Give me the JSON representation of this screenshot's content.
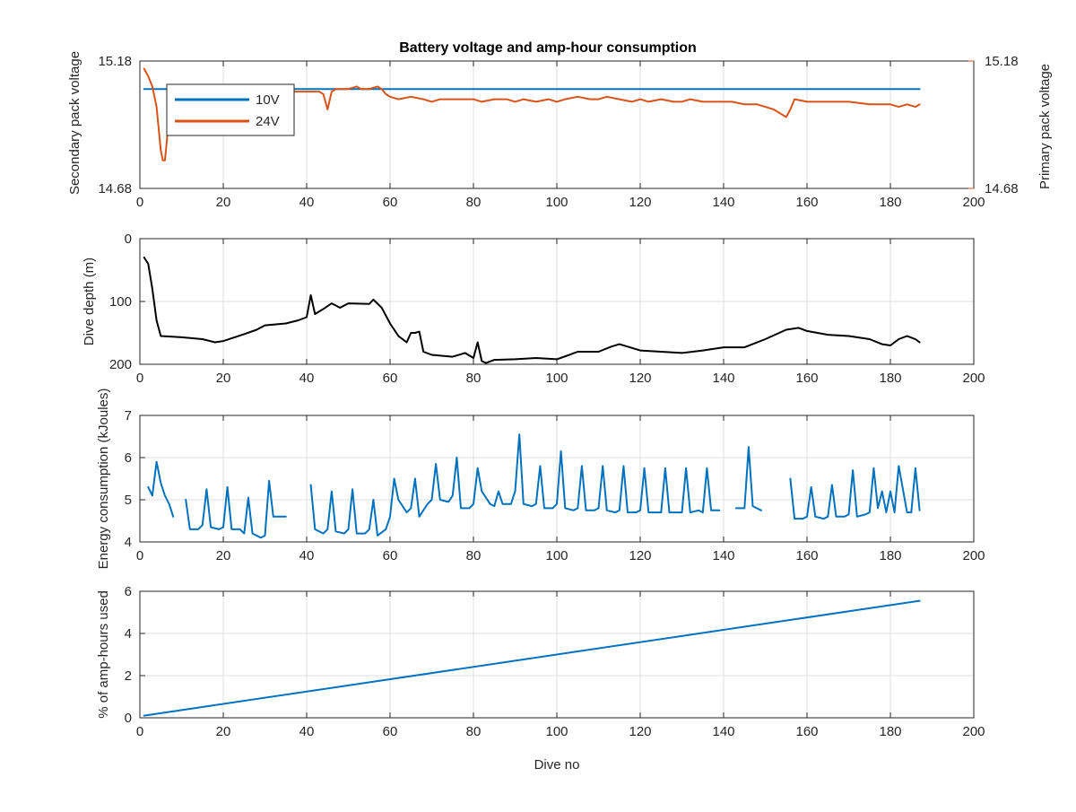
{
  "colors": {
    "series_blue": "#0072BD",
    "series_orange": "#D95319",
    "series_black": "#000000",
    "axis_text": "#262626",
    "grid": "#dfdfdf"
  },
  "chart_data": [
    {
      "type": "line",
      "title": "Battery voltage and amp-hour consumption",
      "xlabel": "",
      "ylabel_left": "Secondary pack voltage",
      "ylabel_right": "Primary pack voltage",
      "xlim": [
        0,
        200
      ],
      "ylim_left": [
        14.68,
        15.18
      ],
      "ylim_right": [
        14.68,
        15.18
      ],
      "x_ticks": [
        "0",
        "20",
        "40",
        "60",
        "80",
        "100",
        "120",
        "140",
        "160",
        "180",
        "200"
      ],
      "y_ticks_left": [
        "14.68",
        "15.18"
      ],
      "y_ticks_right": [
        "14.68",
        "15.18"
      ],
      "grid": true,
      "legend": {
        "placement": "top-left",
        "entries": [
          "10V",
          "24V"
        ]
      },
      "series": [
        {
          "name": "10V",
          "axis": "left",
          "color": "#0072BD",
          "x": [
            1,
            187
          ],
          "y": [
            15.07,
            15.07
          ]
        },
        {
          "name": "24V",
          "axis": "right",
          "color": "#D95319",
          "x": [
            1,
            2,
            3,
            4,
            5,
            5.5,
            6,
            6.5,
            7,
            8,
            10,
            15,
            20,
            25,
            30,
            35,
            40,
            43,
            44,
            45,
            46,
            47,
            50,
            52,
            53,
            55,
            57,
            58,
            59,
            60,
            62,
            65,
            68,
            70,
            72,
            75,
            78,
            80,
            82,
            85,
            88,
            90,
            92,
            95,
            98,
            100,
            102,
            105,
            108,
            110,
            112,
            115,
            118,
            120,
            122,
            125,
            128,
            130,
            132,
            135,
            138,
            140,
            142,
            145,
            148,
            150,
            152,
            154,
            155,
            156,
            157,
            160,
            165,
            170,
            175,
            180,
            182,
            184,
            186,
            187
          ],
          "y": [
            15.15,
            15.12,
            15.08,
            15.0,
            14.83,
            14.79,
            14.79,
            14.87,
            15.03,
            15.06,
            15.07,
            15.07,
            15.07,
            15.06,
            15.05,
            15.06,
            15.06,
            15.06,
            15.05,
            14.99,
            15.06,
            15.07,
            15.07,
            15.08,
            15.07,
            15.07,
            15.08,
            15.07,
            15.05,
            15.04,
            15.03,
            15.04,
            15.03,
            15.02,
            15.03,
            15.03,
            15.03,
            15.03,
            15.02,
            15.03,
            15.03,
            15.02,
            15.03,
            15.02,
            15.03,
            15.02,
            15.03,
            15.04,
            15.03,
            15.03,
            15.04,
            15.03,
            15.02,
            15.03,
            15.02,
            15.03,
            15.02,
            15.02,
            15.03,
            15.02,
            15.02,
            15.02,
            15.02,
            15.01,
            15.01,
            15.0,
            14.99,
            14.97,
            14.96,
            14.99,
            15.03,
            15.02,
            15.02,
            15.02,
            15.01,
            15.01,
            15.0,
            15.01,
            15.0,
            15.01
          ]
        }
      ]
    },
    {
      "type": "line",
      "title": "",
      "xlabel": "",
      "ylabel": "Dive depth (m)",
      "xlim": [
        0,
        200
      ],
      "ylim": [
        200,
        0
      ],
      "y_reversed": true,
      "x_ticks": [
        "0",
        "20",
        "40",
        "60",
        "80",
        "100",
        "120",
        "140",
        "160",
        "180",
        "200"
      ],
      "y_ticks": [
        "0",
        "100",
        "200"
      ],
      "grid": true,
      "series": [
        {
          "color": "#000000",
          "x": [
            1,
            2,
            3,
            4,
            5,
            10,
            15,
            18,
            20,
            25,
            28,
            30,
            35,
            38,
            40,
            41,
            42,
            44,
            46,
            48,
            50,
            55,
            56,
            58,
            60,
            62,
            64,
            65,
            66,
            67,
            68,
            70,
            75,
            78,
            80,
            81,
            82,
            83,
            85,
            90,
            95,
            100,
            103,
            105,
            110,
            113,
            115,
            120,
            125,
            130,
            135,
            140,
            145,
            150,
            155,
            158,
            160,
            165,
            170,
            175,
            178,
            180,
            182,
            184,
            186,
            187
          ],
          "y": [
            30,
            40,
            80,
            130,
            155,
            157,
            160,
            165,
            163,
            152,
            145,
            138,
            135,
            130,
            125,
            90,
            120,
            112,
            103,
            110,
            103,
            104,
            97,
            110,
            135,
            155,
            165,
            150,
            150,
            148,
            180,
            185,
            188,
            182,
            190,
            165,
            195,
            198,
            193,
            192,
            190,
            192,
            185,
            180,
            180,
            172,
            168,
            178,
            180,
            182,
            178,
            173,
            173,
            160,
            145,
            142,
            147,
            153,
            155,
            160,
            168,
            170,
            160,
            155,
            160,
            165
          ]
        }
      ]
    },
    {
      "type": "line",
      "title": "",
      "xlabel": "",
      "ylabel": "Energy consumption (kJoules)",
      "xlim": [
        0,
        200
      ],
      "ylim": [
        4,
        7
      ],
      "x_ticks": [
        "0",
        "20",
        "40",
        "60",
        "80",
        "100",
        "120",
        "140",
        "160",
        "180",
        "200"
      ],
      "y_ticks": [
        "4",
        "5",
        "6",
        "7"
      ],
      "grid": true,
      "series": [
        {
          "color": "#0072BD",
          "segments": [
            {
              "x": [
                2,
                3,
                4,
                5,
                6,
                7,
                8
              ],
              "y": [
                5.3,
                5.1,
                5.9,
                5.4,
                5.1,
                4.9,
                4.6
              ]
            },
            {
              "x": [
                11,
                12,
                14,
                15,
                16,
                17,
                19,
                20,
                21,
                22,
                24,
                25,
                26,
                27,
                29,
                30,
                31,
                32,
                34,
                35
              ],
              "y": [
                5.0,
                4.3,
                4.3,
                4.4,
                5.25,
                4.35,
                4.3,
                4.35,
                5.3,
                4.3,
                4.3,
                4.2,
                5.05,
                4.2,
                4.1,
                4.15,
                5.45,
                4.6,
                4.6,
                4.6
              ]
            },
            {
              "x": [
                41,
                42,
                44,
                45,
                46,
                47,
                49,
                50,
                51,
                52,
                54,
                55,
                56,
                57,
                59,
                60,
                61,
                62,
                64,
                65,
                66,
                67,
                69,
                70,
                71,
                72,
                74,
                75,
                76,
                77,
                79,
                80,
                81,
                82,
                84,
                85,
                86,
                87,
                89,
                90,
                91,
                92,
                94,
                95,
                96,
                97,
                99,
                100,
                101,
                102,
                104,
                105,
                106,
                107,
                109,
                110,
                111,
                112,
                114,
                115,
                116,
                117,
                119,
                120,
                121,
                122,
                124,
                125,
                126,
                127,
                129,
                130,
                131,
                132,
                134,
                135,
                136,
                137,
                139
              ],
              "y": [
                5.35,
                4.3,
                4.2,
                4.3,
                5.2,
                4.25,
                4.2,
                4.3,
                5.25,
                4.2,
                4.2,
                4.3,
                5.0,
                4.15,
                4.3,
                4.6,
                5.5,
                5.0,
                4.7,
                4.8,
                5.5,
                4.6,
                4.9,
                5.0,
                5.85,
                5.0,
                4.95,
                5.1,
                6.0,
                4.8,
                4.8,
                4.9,
                5.75,
                5.2,
                4.9,
                4.85,
                5.2,
                4.9,
                4.9,
                5.2,
                6.55,
                4.9,
                4.85,
                4.9,
                5.8,
                4.8,
                4.8,
                4.9,
                6.15,
                4.8,
                4.75,
                4.8,
                5.8,
                4.75,
                4.75,
                4.8,
                5.8,
                4.75,
                4.7,
                4.75,
                5.8,
                4.7,
                4.7,
                4.75,
                5.75,
                4.7,
                4.7,
                4.7,
                5.75,
                4.7,
                4.7,
                4.7,
                5.75,
                4.7,
                4.75,
                4.7,
                5.75,
                4.75,
                4.75
              ]
            },
            {
              "x": [
                143,
                145,
                146,
                147,
                149
              ],
              "y": [
                4.8,
                4.8,
                6.25,
                4.85,
                4.75
              ]
            },
            {
              "x": [
                156,
                157,
                159,
                160,
                161,
                162,
                164,
                165,
                166,
                167,
                169,
                170,
                171,
                172,
                174,
                175,
                176,
                177,
                178,
                179,
                180,
                181,
                182,
                184,
                185,
                186,
                187
              ],
              "y": [
                5.5,
                4.55,
                4.55,
                4.6,
                5.3,
                4.6,
                4.55,
                4.6,
                5.35,
                4.6,
                4.6,
                4.65,
                5.7,
                4.6,
                4.65,
                4.7,
                5.75,
                4.8,
                5.2,
                4.7,
                5.2,
                4.7,
                5.8,
                4.7,
                4.7,
                5.75,
                4.75
              ]
            }
          ]
        }
      ]
    },
    {
      "type": "line",
      "title": "",
      "xlabel": "Dive no",
      "ylabel": "% of amp-hours used",
      "xlim": [
        0,
        200
      ],
      "ylim": [
        0,
        6
      ],
      "x_ticks": [
        "0",
        "20",
        "40",
        "60",
        "80",
        "100",
        "120",
        "140",
        "160",
        "180",
        "200"
      ],
      "y_ticks": [
        "0",
        "2",
        "4",
        "6"
      ],
      "grid": true,
      "series": [
        {
          "color": "#0072BD",
          "x": [
            1,
            187
          ],
          "y": [
            0.1,
            5.55
          ]
        }
      ]
    }
  ]
}
